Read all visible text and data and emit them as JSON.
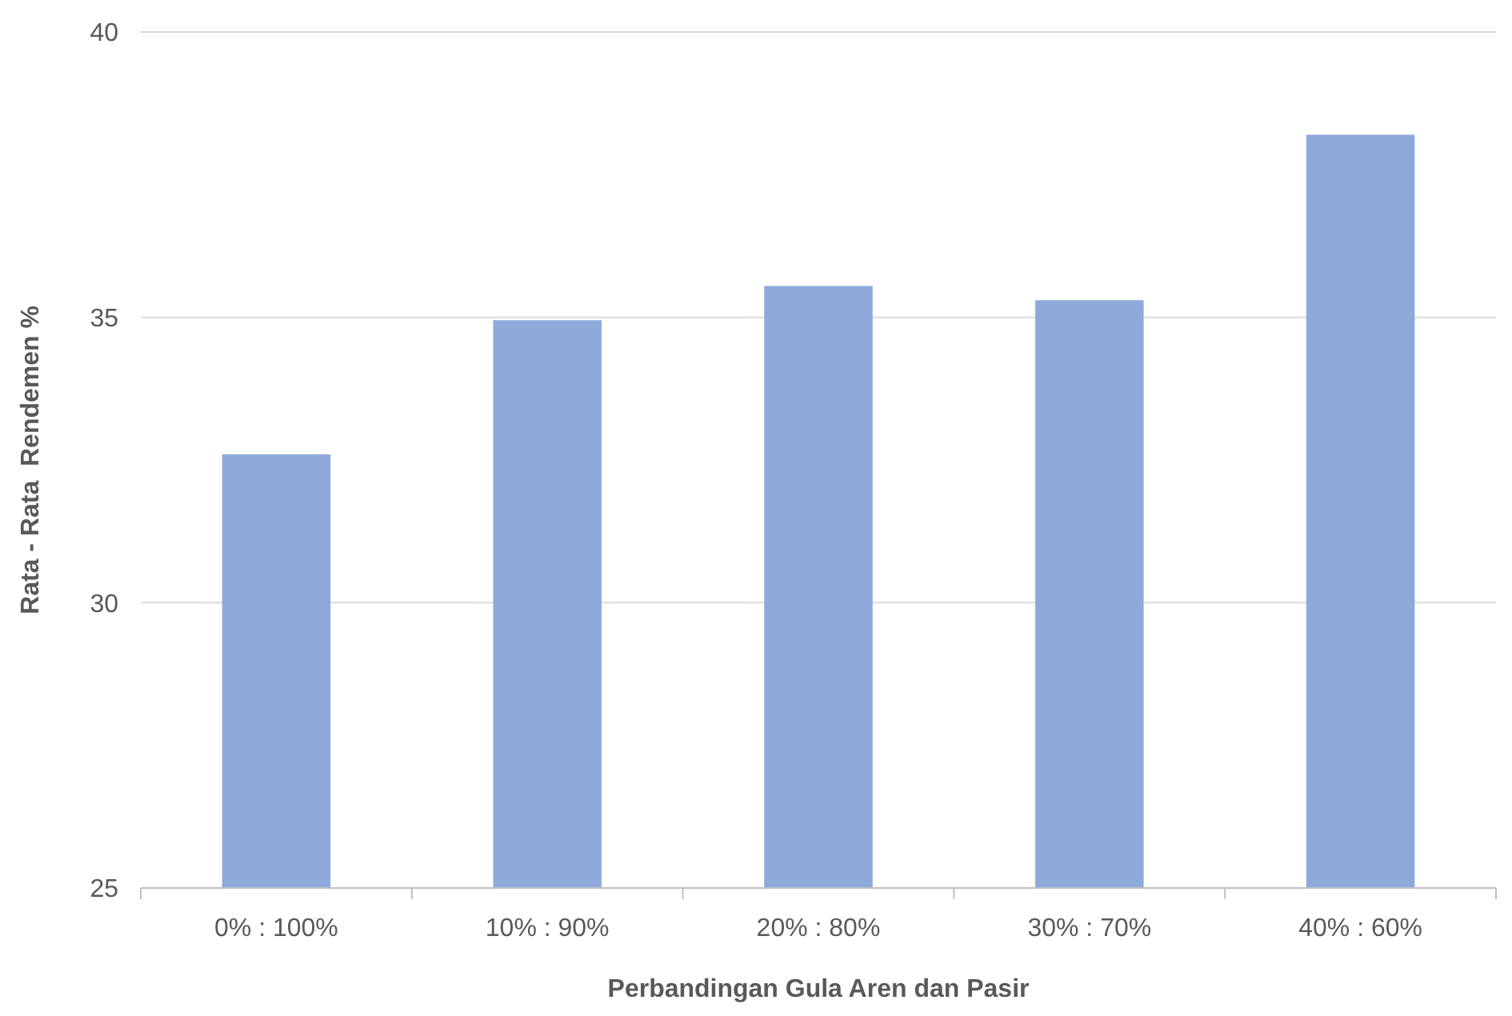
{
  "chart_data": {
    "type": "bar",
    "xlabel": "Perbandingan Gula Aren dan Pasir",
    "ylabel": "Rata - Rata  Rendemen %",
    "categories": [
      "0% : 100%",
      "10% : 90%",
      "20% : 80%",
      "30% : 70%",
      "40% : 60%"
    ],
    "values": [
      32.6,
      34.95,
      35.55,
      35.3,
      38.2
    ],
    "color": "#8eaadb",
    "ylim": [
      25,
      40
    ],
    "yticks": [
      25,
      30,
      35,
      40
    ],
    "grid": "y"
  }
}
